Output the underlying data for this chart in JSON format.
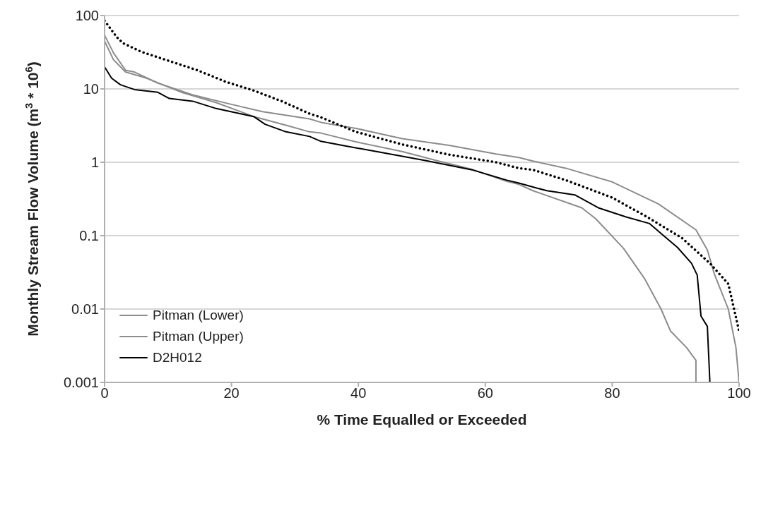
{
  "chart_data": {
    "type": "line",
    "xlabel": "% Time Equalled or Exceeded",
    "ylabel": "Monthly Stream Flow Volume (m$^{3}$ * 10$^{6}$)",
    "log": "y",
    "grid": "y",
    "legend": "bottom left",
    "xlim": [
      0,
      100
    ],
    "xticks": [
      0,
      20,
      40,
      60,
      80,
      100
    ],
    "ylim": [
      0.001,
      100
    ],
    "yticks": [
      {
        "value": 0.001,
        "label": "0.001"
      },
      {
        "value": 0.01,
        "label": "0.01"
      },
      {
        "value": 0.1,
        "label": "0.1"
      },
      {
        "value": 1,
        "label": "1"
      },
      {
        "value": 10,
        "label": "10"
      },
      {
        "value": 100,
        "label": "100"
      }
    ],
    "series": [
      {
        "name": "Pitman (Lower)",
        "color": "#8c8c8c",
        "line_style": "solid",
        "x": [
          0,
          1.4,
          3.3,
          6.6,
          12.1,
          17.6,
          23.5,
          28.6,
          32.3,
          34.1,
          39.6,
          46.9,
          52.4,
          57.9,
          63.4,
          65.3,
          67.5,
          75.2,
          77.4,
          81.8,
          85.1,
          87.7,
          89.2,
          91.7,
          93.2,
          93.2,
          96.9
        ],
        "values": [
          45,
          25,
          17,
          14,
          9,
          6.5,
          4.2,
          3.2,
          2.6,
          2.5,
          1.9,
          1.4,
          1.05,
          0.8,
          0.55,
          0.5,
          0.41,
          0.24,
          0.17,
          0.067,
          0.026,
          0.01,
          0.005,
          0.003,
          0.002,
          0.001,
          0.001
        ]
      },
      {
        "name": "Pitman (Upper)",
        "color": "#8c8c8c",
        "line_style": "solid",
        "x": [
          0,
          1.4,
          3.3,
          4.7,
          8.4,
          13.9,
          19.5,
          24.9,
          32.3,
          34.1,
          39.6,
          46.9,
          54.3,
          61.7,
          65.3,
          67.5,
          72.7,
          80,
          87.3,
          93.2,
          95,
          96.1,
          98.3,
          99.5,
          100
        ],
        "values": [
          54,
          31,
          18,
          17,
          12,
          8.3,
          6.3,
          4.9,
          3.9,
          3.5,
          2.9,
          2.1,
          1.7,
          1.3,
          1.16,
          1.04,
          0.83,
          0.54,
          0.27,
          0.12,
          0.064,
          0.03,
          0.01,
          0.003,
          0.001
        ]
      },
      {
        "color": "#000000",
        "line_style": "dotted",
        "x": [
          0,
          1.9,
          2.9,
          5.8,
          10.2,
          14.6,
          19.1,
          23.5,
          27.9,
          32.3,
          34.1,
          39.6,
          46.9,
          54.3,
          61.7,
          65.3,
          67.5,
          72.7,
          80,
          85.5,
          91,
          95.4,
          98.3,
          100
        ],
        "values": [
          85,
          51,
          42,
          32,
          24,
          18,
          12.5,
          9.5,
          6.8,
          4.6,
          4.1,
          2.6,
          1.75,
          1.27,
          1,
          0.83,
          0.79,
          0.57,
          0.33,
          0.18,
          0.093,
          0.042,
          0.022,
          0.005
        ]
      },
      {
        "name": "D2H012",
        "color": "#000000",
        "line_style": "solid",
        "x": [
          0,
          1.1,
          2.5,
          4.7,
          8.4,
          10.2,
          13.9,
          17.6,
          23.5,
          25.3,
          28.6,
          32.3,
          34.1,
          37.9,
          43.3,
          50.7,
          57.9,
          63.4,
          65.3,
          67.5,
          69.7,
          74.1,
          77.8,
          82.2,
          85.9,
          88.1,
          90.3,
          92.5,
          93.4,
          94,
          95,
          95.4
        ],
        "values": [
          20,
          14,
          11.4,
          9.8,
          9,
          7.4,
          6.8,
          5.4,
          4.2,
          3.3,
          2.6,
          2.25,
          1.93,
          1.67,
          1.38,
          1.05,
          0.79,
          0.57,
          0.52,
          0.46,
          0.41,
          0.36,
          0.24,
          0.18,
          0.146,
          0.1,
          0.069,
          0.042,
          0.029,
          0.008,
          0.0058,
          0.001
        ]
      }
    ]
  }
}
